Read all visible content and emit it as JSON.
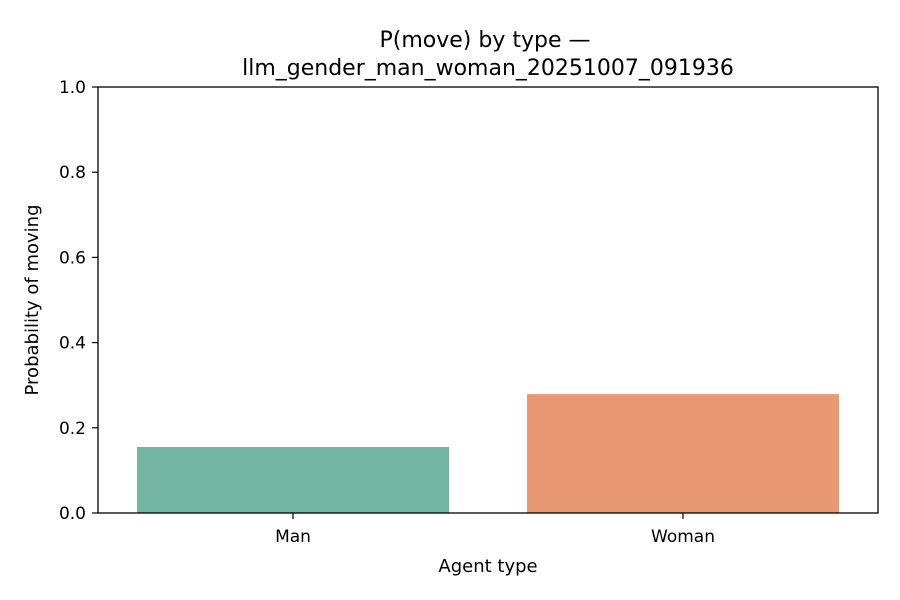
{
  "chart_data": {
    "type": "bar",
    "title_lines": [
      "P(move) by type —",
      "llm_gender_man_woman_20251007_091936"
    ],
    "xlabel": "Agent type",
    "ylabel": "Probability of moving",
    "categories": [
      "Man",
      "Woman"
    ],
    "values": [
      0.155,
      0.279
    ],
    "colors": [
      "#72b5a1",
      "#e99874"
    ],
    "ylim": [
      0,
      1.0
    ],
    "yticks": [
      0.0,
      0.2,
      0.4,
      0.6,
      0.8,
      1.0
    ],
    "ytick_labels": [
      "0.0",
      "0.2",
      "0.4",
      "0.6",
      "0.8",
      "1.0"
    ],
    "grid": false,
    "legend": "none"
  }
}
